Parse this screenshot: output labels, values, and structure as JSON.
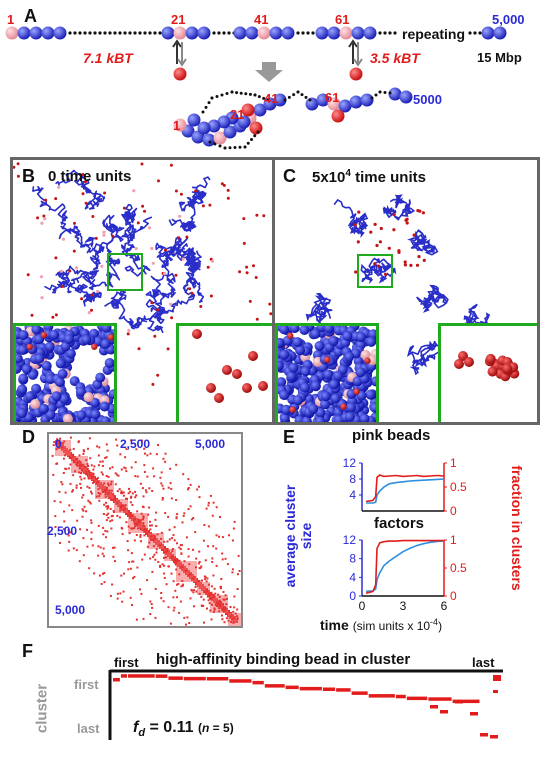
{
  "panels": {
    "A": "A",
    "B": "B",
    "C": "C",
    "D": "D",
    "E": "E",
    "F": "F"
  },
  "panelA": {
    "bead_labels": [
      "1",
      "21",
      "41",
      "61"
    ],
    "repeating": "repeating",
    "last_bead": "5,000",
    "genome": "15 Mbp",
    "energy_left": "7.1 kBT",
    "energy_right": "3.5 kBT",
    "folded_labels": [
      "1",
      "21",
      "41",
      "61",
      "5000"
    ]
  },
  "panelB": {
    "title": "0 time units"
  },
  "panelC": {
    "title": "5x10^4 time units"
  },
  "panelD": {
    "tick_top": [
      "0",
      "2,500",
      "5,000"
    ],
    "tick_left": [
      "2,500",
      "5,000"
    ]
  },
  "panelE": {
    "title_top": "pink beads",
    "title_bottom": "factors",
    "ylabel_left": "average cluster size",
    "ylabel_right": "fraction in clusters",
    "xlabel": "time (sim units x 10^-4)",
    "left_ticks": [
      "12",
      "8",
      "4",
      "0"
    ],
    "right_ticks": [
      "1",
      "0.5",
      "0"
    ],
    "x_ticks": [
      "0",
      "3",
      "6"
    ]
  },
  "panelF": {
    "title": "high-affinity binding bead in cluster",
    "first_top": "first",
    "last_top": "last",
    "y_first": "first",
    "y_last": "last",
    "y_axis": "cluster",
    "fd_text": "fd = 0.11",
    "n_text": "(n = 5)"
  },
  "colors": {
    "blue_bead": "#2d2fd6",
    "pink_bead": "#f0a0a8",
    "red_factor": "#e21b1b",
    "green_box": "#1faa1f",
    "panel_border": "#666666"
  },
  "chart_data": [
    {
      "type": "line",
      "title": "pink beads",
      "xlabel": "time (sim units x 10^-4)",
      "xlim": [
        0,
        6
      ],
      "series": [
        {
          "name": "average cluster size",
          "axis": "left",
          "ylim": [
            0,
            12
          ],
          "x": [
            0.3,
            0.8,
            1.0,
            1.1,
            1.3,
            1.6,
            2,
            2.5,
            3,
            3.5,
            4,
            4.5,
            5,
            5.5,
            6
          ],
          "y": [
            2,
            2,
            2.2,
            4,
            5,
            6,
            6.8,
            7.1,
            7.3,
            7.5,
            7.6,
            7.7,
            7.8,
            7.9,
            8
          ]
        },
        {
          "name": "fraction in clusters",
          "axis": "right",
          "ylim": [
            0,
            1
          ],
          "x": [
            0.3,
            0.8,
            1.0,
            1.1,
            1.3,
            1.6,
            2,
            2.5,
            3,
            3.5,
            4,
            4.5,
            5,
            5.5,
            6
          ],
          "y": [
            0.2,
            0.22,
            0.3,
            0.7,
            0.75,
            0.72,
            0.73,
            0.74,
            0.72,
            0.73,
            0.74,
            0.72,
            0.73,
            0.74,
            0.73
          ]
        }
      ]
    },
    {
      "type": "line",
      "title": "factors",
      "xlabel": "time (sim units x 10^-4)",
      "xlim": [
        0,
        6
      ],
      "series": [
        {
          "name": "average cluster size",
          "axis": "left",
          "ylim": [
            0,
            12
          ],
          "x": [
            0.3,
            0.8,
            1.0,
            1.1,
            1.3,
            1.6,
            2,
            2.5,
            3,
            3.5,
            4,
            4.5,
            5,
            5.5,
            6
          ],
          "y": [
            1,
            1.1,
            1.5,
            3.5,
            5,
            6.5,
            7.5,
            8.5,
            9.5,
            10.2,
            10.8,
            11.2,
            11.5,
            11.7,
            11.8
          ]
        },
        {
          "name": "fraction in clusters",
          "axis": "right",
          "ylim": [
            0,
            1
          ],
          "x": [
            0.3,
            0.8,
            1.0,
            1.1,
            1.3,
            1.6,
            2,
            2.5,
            3,
            3.5,
            4,
            4.5,
            5,
            5.5,
            6
          ],
          "y": [
            0.05,
            0.08,
            0.2,
            0.85,
            0.95,
            0.97,
            0.98,
            0.98,
            0.99,
            0.99,
            0.99,
            0.99,
            0.99,
            0.99,
            0.99
          ]
        }
      ]
    }
  ]
}
